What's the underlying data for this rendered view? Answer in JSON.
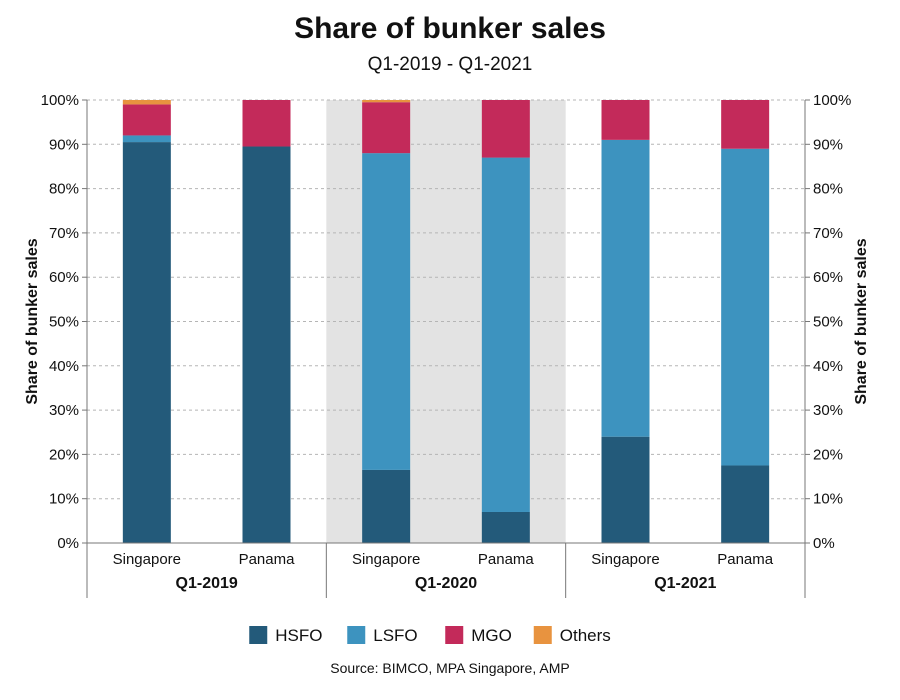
{
  "chart_data": {
    "type": "bar",
    "stacked": true,
    "title": "Share of bunker sales",
    "subtitle": "Q1-2019 - Q1-2021",
    "ylabel": "Share of bunker sales",
    "ylabel_right": "Share of bunker sales",
    "ylim": [
      0,
      100
    ],
    "yticks": [
      "0%",
      "10%",
      "20%",
      "30%",
      "40%",
      "50%",
      "60%",
      "70%",
      "80%",
      "90%",
      "100%"
    ],
    "grid": true,
    "legend_position": "bottom",
    "groups": [
      {
        "label": "Q1-2019",
        "categories": [
          "Singapore",
          "Panama"
        ],
        "shaded": false
      },
      {
        "label": "Q1-2020",
        "categories": [
          "Singapore",
          "Panama"
        ],
        "shaded": true
      },
      {
        "label": "Q1-2021",
        "categories": [
          "Singapore",
          "Panama"
        ],
        "shaded": false
      }
    ],
    "categories": [
      "Singapore",
      "Panama",
      "Singapore",
      "Panama",
      "Singapore",
      "Panama"
    ],
    "series": [
      {
        "name": "HSFO",
        "color": "#235a7a",
        "values": [
          90.5,
          89.5,
          16.5,
          7,
          24,
          17.5
        ]
      },
      {
        "name": "LSFO",
        "color": "#3d93bf",
        "values": [
          1.5,
          0,
          71.5,
          80,
          67,
          71.5
        ]
      },
      {
        "name": "MGO",
        "color": "#c32a5a",
        "values": [
          7,
          10.5,
          11.5,
          13,
          9,
          11
        ]
      },
      {
        "name": "Others",
        "color": "#e8933f",
        "values": [
          1,
          0,
          0.5,
          0,
          0,
          0
        ]
      }
    ],
    "source": "Source: BIMCO, MPA Singapore, AMP"
  },
  "colors": {
    "shade_band": "#e3e3e3",
    "grid": "#b5b5b5",
    "axis": "#777777"
  }
}
